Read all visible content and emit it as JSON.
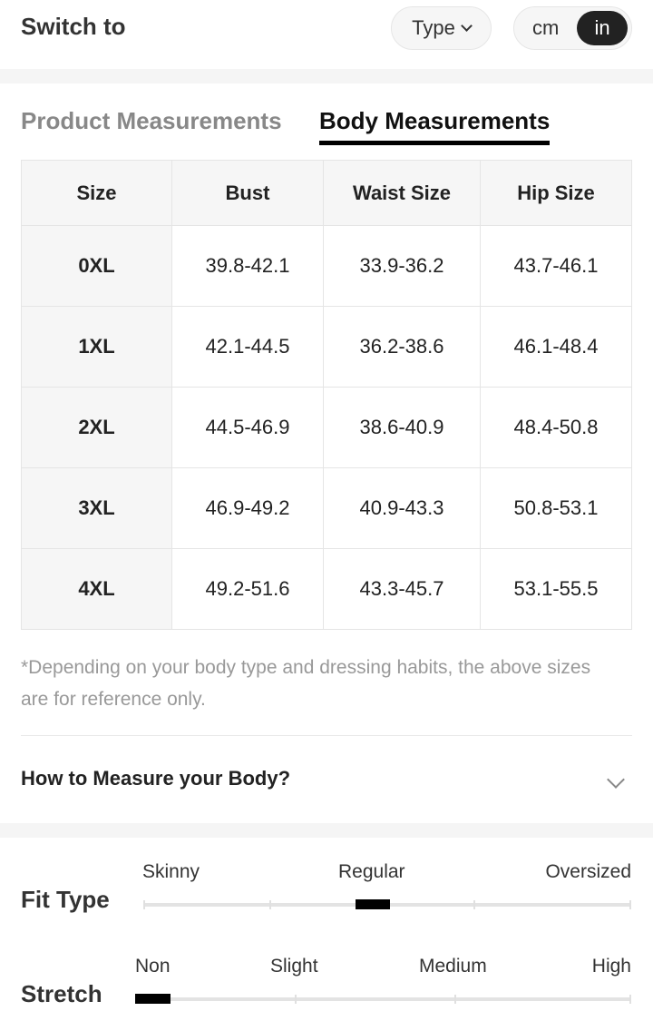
{
  "header": {
    "title": "Switch to",
    "type_label": "Type",
    "units": [
      "cm",
      "in"
    ],
    "selected_unit": "in"
  },
  "tabs": [
    {
      "label": "Product Measurements",
      "active": false
    },
    {
      "label": "Body Measurements",
      "active": true
    }
  ],
  "table": {
    "headers": [
      "Size",
      "Bust",
      "Waist Size",
      "Hip Size"
    ],
    "rows": [
      [
        "0XL",
        "39.8-42.1",
        "33.9-36.2",
        "43.7-46.1"
      ],
      [
        "1XL",
        "42.1-44.5",
        "36.2-38.6",
        "46.1-48.4"
      ],
      [
        "2XL",
        "44.5-46.9",
        "38.6-40.9",
        "48.4-50.8"
      ],
      [
        "3XL",
        "46.9-49.2",
        "40.9-43.3",
        "50.8-53.1"
      ],
      [
        "4XL",
        "49.2-51.6",
        "43.3-45.7",
        "53.1-55.5"
      ]
    ]
  },
  "note": "*Depending on your body type and dressing habits, the above sizes are for reference only.",
  "how_to_measure": {
    "label": "How to Measure your Body?",
    "icon": "chevron-down-icon"
  },
  "fit_type": {
    "label": "Fit Type",
    "options": [
      "Skinny",
      "Regular",
      "Oversized"
    ],
    "selected": "Regular"
  },
  "stretch": {
    "label": "Stretch",
    "options": [
      "Non",
      "Slight",
      "Medium",
      "High"
    ],
    "selected": "Non"
  }
}
